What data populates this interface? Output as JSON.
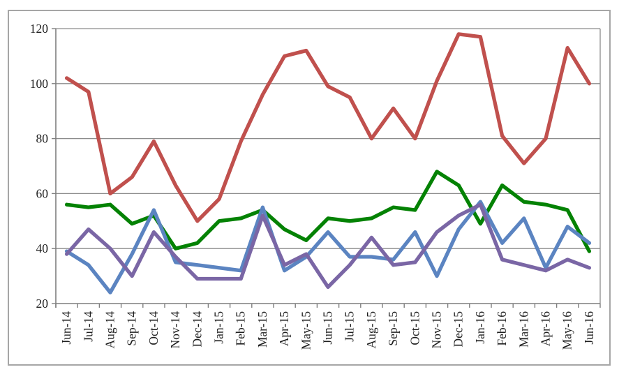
{
  "chart_data": {
    "type": "line",
    "title": "",
    "legend": "none",
    "grid": "horizontal",
    "categories": [
      "Jun-14",
      "Jul-14",
      "Aug-14",
      "Sep-14",
      "Oct-14",
      "Nov-14",
      "Dec-14",
      "Jan-15",
      "Feb-15",
      "Mar-15",
      "Apr-15",
      "May-15",
      "Jun-15",
      "Jul-15",
      "Aug-15",
      "Sep-15",
      "Oct-15",
      "Nov-15",
      "Dec-15",
      "Jan-16",
      "Feb-16",
      "Mar-16",
      "Apr-16",
      "May-16",
      "Jun-16"
    ],
    "y_axis": {
      "min": 20,
      "max": 120,
      "step": 20,
      "tick_labels": [
        "20",
        "40",
        "60",
        "80",
        "100",
        "120"
      ]
    },
    "series": [
      {
        "name": "red-series",
        "color": "#C0504D",
        "values": [
          102,
          97,
          60,
          66,
          79,
          63,
          50,
          58,
          79,
          96,
          110,
          112,
          99,
          95,
          80,
          91,
          80,
          101,
          118,
          117,
          81,
          71,
          80,
          113,
          100
        ]
      },
      {
        "name": "green-series",
        "color": "#048204",
        "values": [
          56,
          55,
          56,
          49,
          52,
          40,
          42,
          50,
          51,
          54,
          47,
          43,
          51,
          50,
          51,
          55,
          54,
          68,
          63,
          49,
          63,
          57,
          56,
          54,
          39
        ]
      },
      {
        "name": "blue-series",
        "color": "#5B84C1",
        "values": [
          39,
          34,
          24,
          38,
          54,
          35,
          34,
          33,
          32,
          55,
          32,
          37,
          46,
          37,
          37,
          36,
          46,
          30,
          47,
          57,
          42,
          51,
          33,
          48,
          42
        ]
      },
      {
        "name": "purple-series",
        "color": "#7A66A5",
        "values": [
          38,
          47,
          40,
          30,
          46,
          37,
          29,
          29,
          29,
          52,
          34,
          38,
          26,
          34,
          44,
          34,
          35,
          46,
          52,
          56,
          36,
          34,
          32,
          36,
          33
        ]
      }
    ],
    "colors": {
      "gridline": "#8C8C8C",
      "axis": "#7F7F7F",
      "frame_border": "#A6A6A6",
      "label_text": "#1F1F1F",
      "background": "#FFFFFF"
    }
  }
}
